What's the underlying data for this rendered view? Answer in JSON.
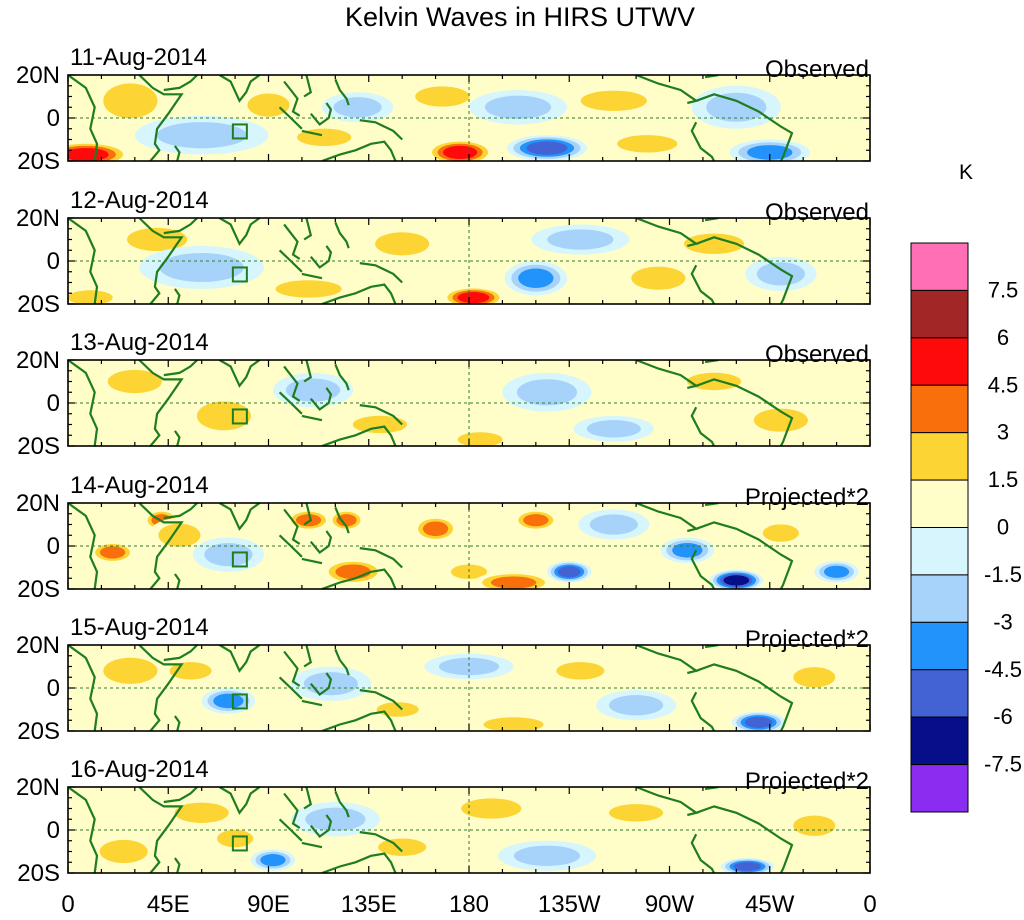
{
  "chart_data": {
    "type": "heatmap",
    "title": "Kelvin Waves in HIRS UTWV",
    "units_label": "K",
    "x_ticks": [
      "0",
      "45E",
      "90E",
      "135E",
      "180",
      "135W",
      "90W",
      "45W",
      "0"
    ],
    "y_ticks": [
      "20N",
      "0",
      "20S"
    ],
    "xlim": [
      0,
      360
    ],
    "ylim": [
      -20,
      20
    ],
    "panels": [
      {
        "date": "11-Aug-2014",
        "label": "Observed"
      },
      {
        "date": "12-Aug-2014",
        "label": "Observed"
      },
      {
        "date": "13-Aug-2014",
        "label": "Observed"
      },
      {
        "date": "14-Aug-2014",
        "label": "Projected*2"
      },
      {
        "date": "15-Aug-2014",
        "label": "Projected*2"
      },
      {
        "date": "16-Aug-2014",
        "label": "Projected*2"
      }
    ],
    "colorbar": {
      "labels": [
        "7.5",
        "6",
        "4.5",
        "3",
        "1.5",
        "0",
        "-1.5",
        "-3",
        "-4.5",
        "-6",
        "-7.5"
      ],
      "colors": [
        "#ff6fb5",
        "#a32626",
        "#ff0a0a",
        "#f96f0b",
        "#fcd535",
        "#fffec8",
        "#d6f5fc",
        "#a7d3fb",
        "#2193fb",
        "#4362d4",
        "#070e8a",
        "#8b2df0"
      ]
    },
    "anomalies": [
      [
        {
          "lon": 8,
          "lat": -17,
          "v": 6,
          "rx": 20,
          "ry": 6
        },
        {
          "lon": 28,
          "lat": 8,
          "v": 1.5,
          "rx": 18,
          "ry": 12
        },
        {
          "lon": 60,
          "lat": -8,
          "v": -1.5,
          "rx": 30,
          "ry": 9
        },
        {
          "lon": 90,
          "lat": 6,
          "v": 1.5,
          "rx": 14,
          "ry": 8
        },
        {
          "lon": 115,
          "lat": -9,
          "v": 3,
          "rx": 18,
          "ry": 6
        },
        {
          "lon": 130,
          "lat": 5,
          "v": -1.5,
          "rx": 16,
          "ry": 7
        },
        {
          "lon": 168,
          "lat": 10,
          "v": 1.5,
          "rx": 18,
          "ry": 7
        },
        {
          "lon": 176,
          "lat": -16,
          "v": 6,
          "rx": 15,
          "ry": 6
        },
        {
          "lon": 202,
          "lat": 5,
          "v": -1.5,
          "rx": 22,
          "ry": 8
        },
        {
          "lon": 215,
          "lat": -14,
          "v": -4.5,
          "rx": 18,
          "ry": 6
        },
        {
          "lon": 245,
          "lat": 8,
          "v": 1.5,
          "rx": 22,
          "ry": 7
        },
        {
          "lon": 260,
          "lat": -12,
          "v": 1.5,
          "rx": 20,
          "ry": 6
        },
        {
          "lon": 300,
          "lat": 5,
          "v": -1.5,
          "rx": 20,
          "ry": 10
        },
        {
          "lon": 315,
          "lat": -16,
          "v": -3,
          "rx": 18,
          "ry": 6
        }
      ],
      [
        {
          "lon": 10,
          "lat": -17,
          "v": 3,
          "rx": 15,
          "ry": 5
        },
        {
          "lon": 40,
          "lat": 10,
          "v": 1.5,
          "rx": 20,
          "ry": 8
        },
        {
          "lon": 60,
          "lat": -3,
          "v": -1.5,
          "rx": 28,
          "ry": 10
        },
        {
          "lon": 108,
          "lat": -13,
          "v": 3,
          "rx": 22,
          "ry": 6
        },
        {
          "lon": 150,
          "lat": 8,
          "v": 1.5,
          "rx": 18,
          "ry": 8
        },
        {
          "lon": 182,
          "lat": -17,
          "v": 6,
          "rx": 14,
          "ry": 5
        },
        {
          "lon": 210,
          "lat": -8,
          "v": -3,
          "rx": 14,
          "ry": 8
        },
        {
          "lon": 230,
          "lat": 10,
          "v": -1.5,
          "rx": 22,
          "ry": 7
        },
        {
          "lon": 265,
          "lat": -8,
          "v": 1.5,
          "rx": 18,
          "ry": 8
        },
        {
          "lon": 290,
          "lat": 8,
          "v": 1.5,
          "rx": 20,
          "ry": 7
        },
        {
          "lon": 320,
          "lat": -6,
          "v": -1.5,
          "rx": 16,
          "ry": 8
        }
      ],
      [
        {
          "lon": 30,
          "lat": 10,
          "v": 1.5,
          "rx": 18,
          "ry": 8
        },
        {
          "lon": 70,
          "lat": -6,
          "v": 1.5,
          "rx": 18,
          "ry": 10
        },
        {
          "lon": 110,
          "lat": 6,
          "v": -1.5,
          "rx": 18,
          "ry": 8
        },
        {
          "lon": 140,
          "lat": -10,
          "v": 1.5,
          "rx": 18,
          "ry": 6
        },
        {
          "lon": 185,
          "lat": -17,
          "v": 3,
          "rx": 15,
          "ry": 5
        },
        {
          "lon": 215,
          "lat": 5,
          "v": -1.5,
          "rx": 20,
          "ry": 9
        },
        {
          "lon": 245,
          "lat": -12,
          "v": -1.5,
          "rx": 18,
          "ry": 6
        },
        {
          "lon": 290,
          "lat": 10,
          "v": 1.5,
          "rx": 18,
          "ry": 6
        },
        {
          "lon": 320,
          "lat": -8,
          "v": 1.5,
          "rx": 18,
          "ry": 8
        }
      ],
      [
        {
          "lon": 20,
          "lat": -3,
          "v": 4.5,
          "rx": 10,
          "ry": 5
        },
        {
          "lon": 42,
          "lat": 12,
          "v": 4.5,
          "rx": 8,
          "ry": 5
        },
        {
          "lon": 50,
          "lat": 5,
          "v": 3,
          "rx": 14,
          "ry": 8
        },
        {
          "lon": 72,
          "lat": -4,
          "v": -1.5,
          "rx": 16,
          "ry": 8
        },
        {
          "lon": 108,
          "lat": 12,
          "v": 4.5,
          "rx": 10,
          "ry": 5
        },
        {
          "lon": 125,
          "lat": 12,
          "v": 4.5,
          "rx": 8,
          "ry": 5
        },
        {
          "lon": 128,
          "lat": -12,
          "v": 4.5,
          "rx": 14,
          "ry": 6
        },
        {
          "lon": 165,
          "lat": 8,
          "v": 4.5,
          "rx": 10,
          "ry": 6
        },
        {
          "lon": 180,
          "lat": -12,
          "v": 3,
          "rx": 12,
          "ry": 5
        },
        {
          "lon": 200,
          "lat": -17,
          "v": 4.5,
          "rx": 18,
          "ry": 5
        },
        {
          "lon": 210,
          "lat": 12,
          "v": 4.5,
          "rx": 10,
          "ry": 5
        },
        {
          "lon": 225,
          "lat": -12,
          "v": -4.5,
          "rx": 10,
          "ry": 5
        },
        {
          "lon": 245,
          "lat": 10,
          "v": -1.5,
          "rx": 16,
          "ry": 7
        },
        {
          "lon": 278,
          "lat": -2,
          "v": -3,
          "rx": 12,
          "ry": 6
        },
        {
          "lon": 300,
          "lat": -16,
          "v": -6,
          "rx": 12,
          "ry": 5
        },
        {
          "lon": 320,
          "lat": 6,
          "v": 3,
          "rx": 12,
          "ry": 6
        },
        {
          "lon": 345,
          "lat": -12,
          "v": -3,
          "rx": 10,
          "ry": 5
        }
      ],
      [
        {
          "lon": 28,
          "lat": 8,
          "v": 1.5,
          "rx": 18,
          "ry": 9
        },
        {
          "lon": 55,
          "lat": 8,
          "v": 3,
          "rx": 14,
          "ry": 6
        },
        {
          "lon": 72,
          "lat": -6,
          "v": -3,
          "rx": 12,
          "ry": 6
        },
        {
          "lon": 118,
          "lat": 2,
          "v": -1.5,
          "rx": 18,
          "ry": 8
        },
        {
          "lon": 148,
          "lat": -10,
          "v": 3,
          "rx": 14,
          "ry": 5
        },
        {
          "lon": 180,
          "lat": 10,
          "v": -1.5,
          "rx": 20,
          "ry": 6
        },
        {
          "lon": 200,
          "lat": -17,
          "v": 3,
          "rx": 20,
          "ry": 5
        },
        {
          "lon": 230,
          "lat": 8,
          "v": 1.5,
          "rx": 16,
          "ry": 6
        },
        {
          "lon": 255,
          "lat": -8,
          "v": -1.5,
          "rx": 18,
          "ry": 7
        },
        {
          "lon": 310,
          "lat": -16,
          "v": -4.5,
          "rx": 12,
          "ry": 5
        },
        {
          "lon": 335,
          "lat": 5,
          "v": 1.5,
          "rx": 14,
          "ry": 7
        }
      ],
      [
        {
          "lon": 25,
          "lat": -10,
          "v": 1.5,
          "rx": 16,
          "ry": 8
        },
        {
          "lon": 60,
          "lat": 8,
          "v": 1.5,
          "rx": 18,
          "ry": 7
        },
        {
          "lon": 75,
          "lat": -4,
          "v": 1.5,
          "rx": 12,
          "ry": 6
        },
        {
          "lon": 92,
          "lat": -14,
          "v": -3,
          "rx": 10,
          "ry": 5
        },
        {
          "lon": 120,
          "lat": 5,
          "v": -1.5,
          "rx": 20,
          "ry": 8
        },
        {
          "lon": 150,
          "lat": -8,
          "v": 1.5,
          "rx": 16,
          "ry": 6
        },
        {
          "lon": 190,
          "lat": 10,
          "v": 1.5,
          "rx": 20,
          "ry": 7
        },
        {
          "lon": 215,
          "lat": -12,
          "v": -1.5,
          "rx": 22,
          "ry": 7
        },
        {
          "lon": 255,
          "lat": 8,
          "v": 1.5,
          "rx": 18,
          "ry": 6
        },
        {
          "lon": 305,
          "lat": -17,
          "v": -4.5,
          "rx": 12,
          "ry": 4
        },
        {
          "lon": 335,
          "lat": 2,
          "v": 1.5,
          "rx": 14,
          "ry": 7
        }
      ]
    ]
  }
}
